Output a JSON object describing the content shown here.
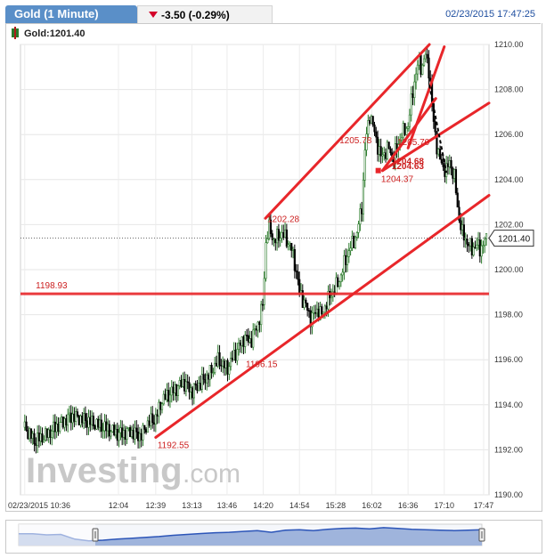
{
  "header": {
    "title": "Gold (1 Minute)",
    "change": "-3.50 (-0.29%)",
    "timestamp": "02/23/2015 17:47:25"
  },
  "legend": {
    "label": "Gold:1201.40",
    "icon": "candlestick-icon"
  },
  "watermark": {
    "brand": "Investing",
    "suffix": ".com"
  },
  "colors": {
    "bull": "#2a7a2a",
    "bear": "#000000",
    "trendline": "#e8262a",
    "annotation": "#cc1f1f",
    "price_label_bg": "#333333",
    "navigator_fill": "#9fb4dc",
    "navigator_line": "#2c55b8",
    "title_tab": "#5a8fc8"
  },
  "chart_data": {
    "type": "candlestick",
    "title": "Gold (1 Minute)",
    "last_price": 1201.4,
    "last_price_label": "1201.40",
    "ylim": [
      1190,
      1210
    ],
    "y_ticks": [
      "1190.00",
      "1192.00",
      "1194.00",
      "1196.00",
      "1198.00",
      "1200.00",
      "1202.00",
      "1204.00",
      "1206.00",
      "1208.00",
      "1210.00"
    ],
    "y_tick_values": [
      1190,
      1192,
      1194,
      1196,
      1198,
      1200,
      1202,
      1204,
      1206,
      1208,
      1210
    ],
    "x_ticks": [
      "02/23/2015 10:36",
      "12:04",
      "12:39",
      "13:13",
      "13:46",
      "14:20",
      "14:54",
      "15:28",
      "16:02",
      "16:36",
      "17:10",
      "17:47"
    ],
    "x_tick_minutes": [
      636,
      724,
      759,
      793,
      826,
      860,
      894,
      928,
      962,
      996,
      1030,
      1067
    ],
    "x_range_minutes": [
      632,
      1072
    ],
    "close_path": [
      [
        636,
        1193.0
      ],
      [
        645,
        1192.4
      ],
      [
        655,
        1192.6
      ],
      [
        665,
        1193.0
      ],
      [
        680,
        1193.5
      ],
      [
        700,
        1193.2
      ],
      [
        715,
        1192.9
      ],
      [
        724,
        1192.7
      ],
      [
        735,
        1192.8
      ],
      [
        745,
        1192.6
      ],
      [
        752,
        1193.2
      ],
      [
        759,
        1193.4
      ],
      [
        765,
        1194.2
      ],
      [
        775,
        1194.6
      ],
      [
        785,
        1195.0
      ],
      [
        793,
        1194.6
      ],
      [
        800,
        1194.9
      ],
      [
        810,
        1195.4
      ],
      [
        818,
        1196.0
      ],
      [
        826,
        1195.6
      ],
      [
        835,
        1196.4
      ],
      [
        842,
        1197.0
      ],
      [
        848,
        1196.8
      ],
      [
        855,
        1197.6
      ],
      [
        860,
        1198.5
      ],
      [
        862,
        1201.0
      ],
      [
        865,
        1201.9
      ],
      [
        870,
        1201.3
      ],
      [
        878,
        1201.6
      ],
      [
        886,
        1201.0
      ],
      [
        890,
        1200.2
      ],
      [
        894,
        1199.0
      ],
      [
        900,
        1198.4
      ],
      [
        905,
        1197.8
      ],
      [
        910,
        1198.2
      ],
      [
        915,
        1198.0
      ],
      [
        920,
        1198.6
      ],
      [
        928,
        1199.2
      ],
      [
        932,
        1199.6
      ],
      [
        937,
        1200.4
      ],
      [
        942,
        1201.0
      ],
      [
        948,
        1201.6
      ],
      [
        953,
        1203.0
      ],
      [
        956,
        1205.7
      ],
      [
        960,
        1206.9
      ],
      [
        964,
        1206.2
      ],
      [
        970,
        1205.0
      ],
      [
        978,
        1205.4
      ],
      [
        982,
        1204.9
      ],
      [
        986,
        1205.5
      ],
      [
        990,
        1206.0
      ],
      [
        996,
        1206.4
      ],
      [
        1000,
        1207.8
      ],
      [
        1003,
        1208.6
      ],
      [
        1006,
        1209.3
      ],
      [
        1009,
        1208.9
      ],
      [
        1012,
        1209.6
      ],
      [
        1016,
        1208.8
      ],
      [
        1020,
        1206.5
      ],
      [
        1024,
        1205.2
      ],
      [
        1028,
        1204.6
      ],
      [
        1032,
        1204.4
      ],
      [
        1035,
        1204.8
      ],
      [
        1040,
        1204.0
      ],
      [
        1043,
        1202.5
      ],
      [
        1047,
        1201.6
      ],
      [
        1052,
        1201.2
      ],
      [
        1056,
        1200.9
      ],
      [
        1060,
        1201.1
      ],
      [
        1064,
        1200.9
      ],
      [
        1067,
        1201.2
      ],
      [
        1070,
        1201.4
      ]
    ],
    "annotations": [
      {
        "label": "1192.55",
        "x": 759,
        "y": 1192.55
      },
      {
        "label": "1196.15",
        "x": 842,
        "y": 1196.15
      },
      {
        "label": "1202.28",
        "x": 862,
        "y": 1202.28
      },
      {
        "label": "1198.93",
        "x": 638,
        "y": 1198.93
      },
      {
        "label": "1205.78",
        "x": 955,
        "y": 1205.78
      },
      {
        "label": "1205.70",
        "x": 1006,
        "y": 1205.7
      },
      {
        "label": "1204.68",
        "x": 979,
        "y": 1204.68
      },
      {
        "label": "1204.63",
        "x": 979,
        "y": 1204.63
      },
      {
        "label": "1204.37",
        "x": 969,
        "y": 1204.37
      }
    ],
    "horizontal_level": 1198.93,
    "trendlines": [
      {
        "name": "support",
        "points": [
          [
            759,
            1192.55
          ],
          [
            1072,
            1203.3
          ]
        ]
      },
      {
        "name": "wedge-lower",
        "points": [
          [
            862,
            1202.28
          ],
          [
            1016,
            1210.0
          ]
        ]
      },
      {
        "name": "wedge-upper",
        "points": [
          [
            972,
            1204.4
          ],
          [
            1072,
            1207.4
          ]
        ]
      },
      {
        "name": "channel-upper",
        "points": [
          [
            996,
            1205.4
          ],
          [
            1030,
            1209.9
          ]
        ]
      },
      {
        "name": "channel-mid",
        "points": [
          [
            972,
            1204.4
          ],
          [
            1022,
            1207.6
          ]
        ]
      }
    ],
    "navigator_values": [
      0.55,
      0.55,
      0.5,
      0.52,
      0.3,
      0.22,
      0.25,
      0.3,
      0.34,
      0.38,
      0.42,
      0.48,
      0.52,
      0.56,
      0.6,
      0.62,
      0.66,
      0.7,
      0.62,
      0.72,
      0.74,
      0.7,
      0.76,
      0.8,
      0.82,
      0.78,
      0.84,
      0.8,
      0.76,
      0.74,
      0.72,
      0.7,
      0.72,
      0.74
    ]
  }
}
